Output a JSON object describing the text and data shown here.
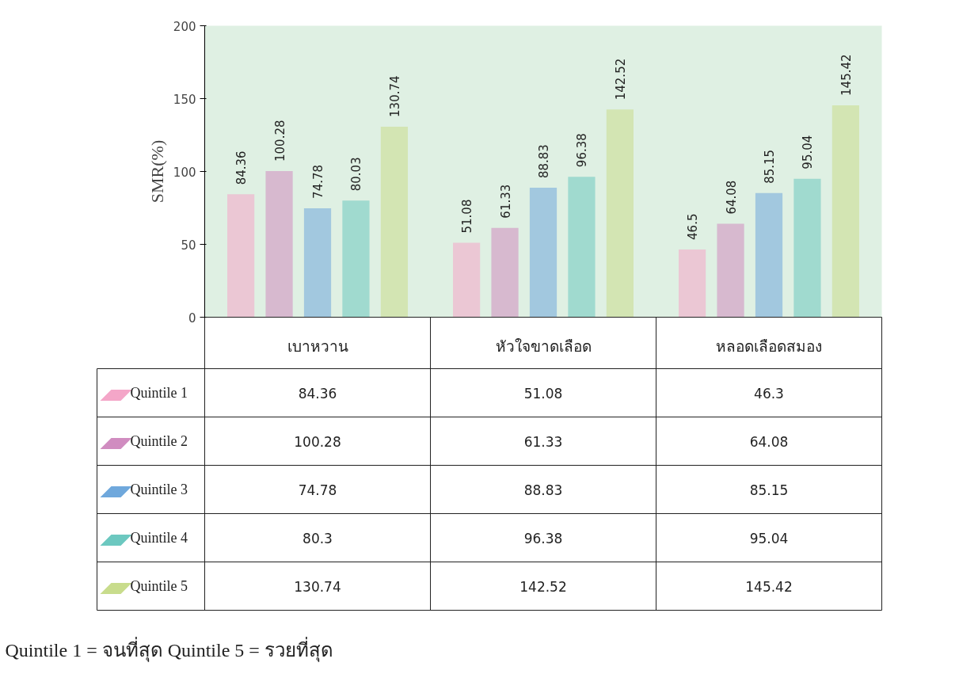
{
  "chart_data": {
    "type": "bar",
    "ylabel": "SMR(%)",
    "categories": [
      "เบาหวาน",
      "หัวใจขาดเลือด",
      "หลอดเลือดสมอง"
    ],
    "series": [
      {
        "name": "Quintile 1",
        "color": "#f4a6c8",
        "values": [
          84.36,
          51.08,
          46.5
        ]
      },
      {
        "name": "Quintile 2",
        "color": "#d08cc0",
        "values": [
          100.28,
          61.33,
          64.08
        ]
      },
      {
        "name": "Quintile 3",
        "color": "#6fa8dc",
        "values": [
          74.78,
          88.83,
          85.15
        ]
      },
      {
        "name": "Quintile 4",
        "color": "#6cc8c0",
        "values": [
          80.03,
          96.38,
          95.04
        ]
      },
      {
        "name": "Quintile 5",
        "color": "#c8dc8c",
        "values": [
          130.74,
          142.52,
          145.42
        ]
      }
    ],
    "ylim": [
      0,
      200
    ],
    "yticks": [
      0,
      50,
      100,
      150,
      200
    ],
    "grid": false,
    "data_labels": true,
    "legend": "bottom left",
    "annotations": [
      "84.36",
      "51.08",
      "46.3",
      "100.28",
      "61.33",
      "64.08",
      "74.78",
      "88.83",
      "85.15",
      "80.3",
      "96.38",
      "95.04",
      "130.74",
      "142.52",
      "145.42",
      "Quintile 1 = จนที่สุด        Quintile 5 = รวยที่สุด"
    ]
  }
}
